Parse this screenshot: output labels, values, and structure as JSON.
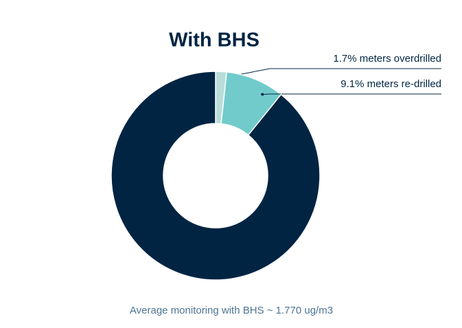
{
  "chart_data": {
    "type": "pie",
    "title": "With BHS",
    "caption": "Average monitoring with BHS ~ 1.770 ug/m3",
    "values": [
      1.7,
      9.1,
      89.2
    ],
    "value_labels": [
      "1.7% meters overdrilled",
      "9.1% meters re-drilled",
      null
    ],
    "colors": [
      "#b9ddd9",
      "#72cbcb",
      "#002442"
    ],
    "donut": true
  }
}
